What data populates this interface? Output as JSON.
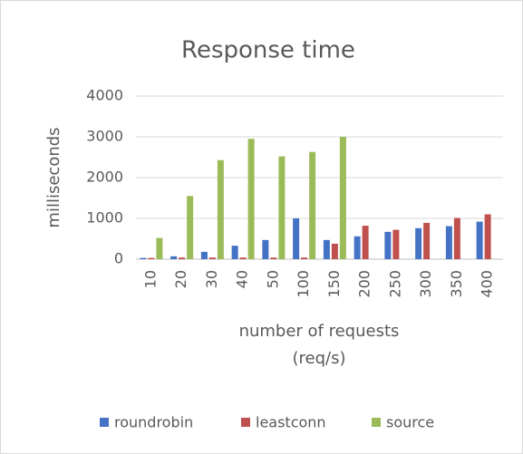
{
  "chart_data": {
    "type": "bar",
    "title": "Response time",
    "ylabel": "milliseconds",
    "xlabel": [
      "number of requests",
      "(req/s)"
    ],
    "categories": [
      "10",
      "20",
      "30",
      "40",
      "50",
      "100",
      "150",
      "200",
      "250",
      "300",
      "350",
      "400"
    ],
    "series": [
      {
        "name": "roundrobin",
        "color": "#4472c4",
        "values": [
          30,
          70,
          180,
          330,
          470,
          1000,
          470,
          560,
          670,
          760,
          810,
          920
        ]
      },
      {
        "name": "leastconn",
        "color": "#c0504d",
        "values": [
          30,
          40,
          40,
          40,
          40,
          40,
          380,
          820,
          720,
          890,
          1010,
          1100
        ]
      },
      {
        "name": "source",
        "color": "#9bbb59",
        "values": [
          520,
          1550,
          2430,
          2950,
          2520,
          2630,
          3000,
          null,
          null,
          null,
          null,
          null
        ]
      }
    ],
    "ylim": [
      0,
      4000
    ],
    "yticks": [
      0,
      1000,
      2000,
      3000,
      4000
    ],
    "grid": true,
    "legend": "bottom"
  }
}
